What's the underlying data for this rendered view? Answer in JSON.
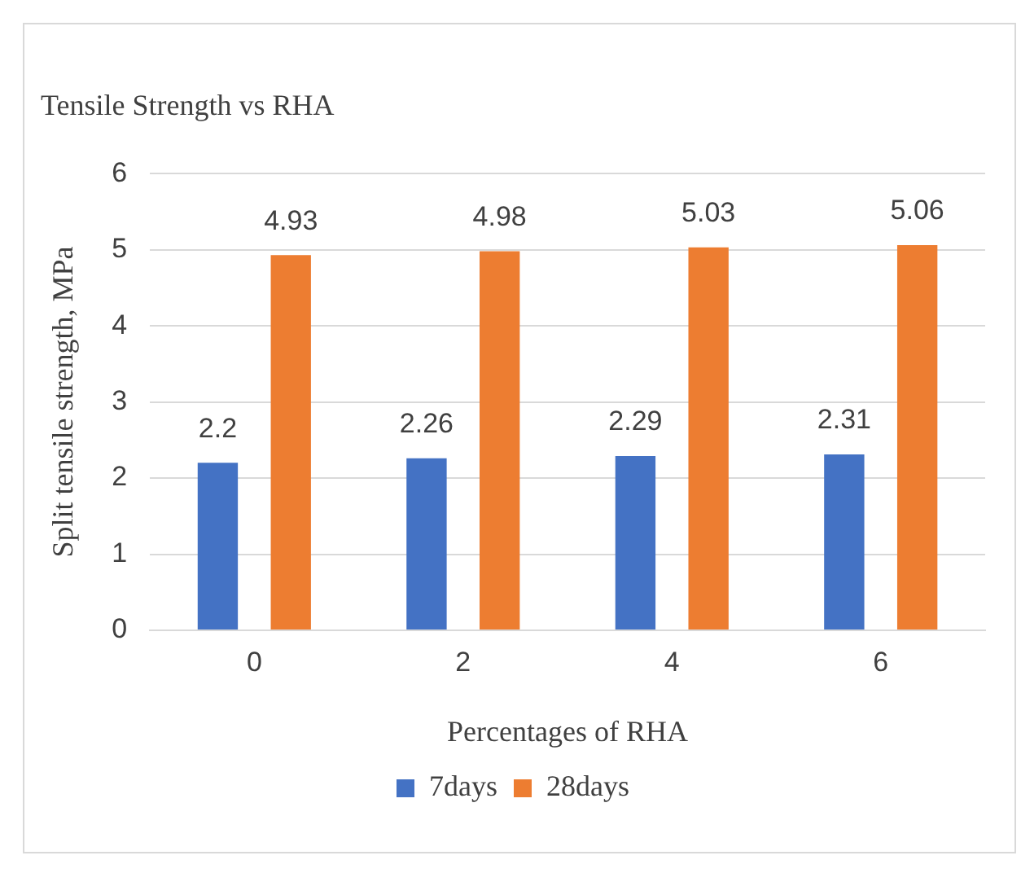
{
  "chart_data": {
    "type": "bar",
    "title": "Tensile Strength vs RHA",
    "xlabel": "Percentages of RHA",
    "ylabel": "Split tensile strength, MPa",
    "categories": [
      "0",
      "2",
      "4",
      "6"
    ],
    "series": [
      {
        "name": "7days",
        "color": "#4472c4",
        "values": [
          2.2,
          2.26,
          2.29,
          2.31
        ]
      },
      {
        "name": "28days",
        "color": "#ed7d31",
        "values": [
          4.93,
          4.98,
          5.03,
          5.06
        ]
      }
    ],
    "ylim": [
      0,
      6
    ],
    "yticks": [
      0,
      1,
      2,
      3,
      4,
      5,
      6
    ],
    "grid": "y",
    "legend": "bottom",
    "data_labels": true
  }
}
